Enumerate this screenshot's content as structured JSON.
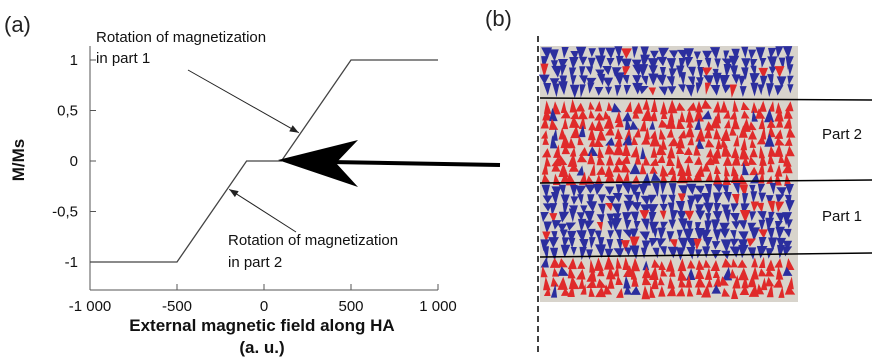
{
  "panels": {
    "left_label": "(a)",
    "right_label": "(b)"
  },
  "chart_data": {
    "type": "line",
    "xlabel_line1": "External magnetic field along HA",
    "xlabel_line2": "(a. u.)",
    "ylabel": "M/Ms",
    "xlim": [
      -1000,
      1000
    ],
    "ylim": [
      -1,
      1
    ],
    "x_ticks": [
      -1000,
      -500,
      0,
      500,
      1000
    ],
    "x_tick_labels": [
      "-1 000",
      "-500",
      "0",
      "500",
      "1 000"
    ],
    "y_ticks": [
      1,
      0.5,
      0,
      -0.5,
      -1
    ],
    "y_tick_labels": [
      "1",
      "0,5",
      "0",
      "-0,5",
      "-1"
    ],
    "grid": false,
    "series": [
      {
        "x": [
          -1000,
          -500,
          -100,
          100,
          500,
          1000
        ],
        "y": [
          -1,
          -1,
          0,
          0,
          1,
          1
        ]
      }
    ],
    "annotations": [
      {
        "line1": "Rotation of magnetization",
        "line2": "in part 1",
        "arrow_to": [
          200,
          0.28
        ]
      },
      {
        "line1": "Rotation of magnetization",
        "line2": "in part 2",
        "arrow_to": [
          -200,
          -0.28
        ]
      }
    ]
  },
  "domain_image": {
    "part_labels": [
      "Part 2",
      "Part 1"
    ],
    "colors": {
      "red": "#e02a2a",
      "blue": "#2b2e9e",
      "gray": "#d8d4cc"
    }
  }
}
